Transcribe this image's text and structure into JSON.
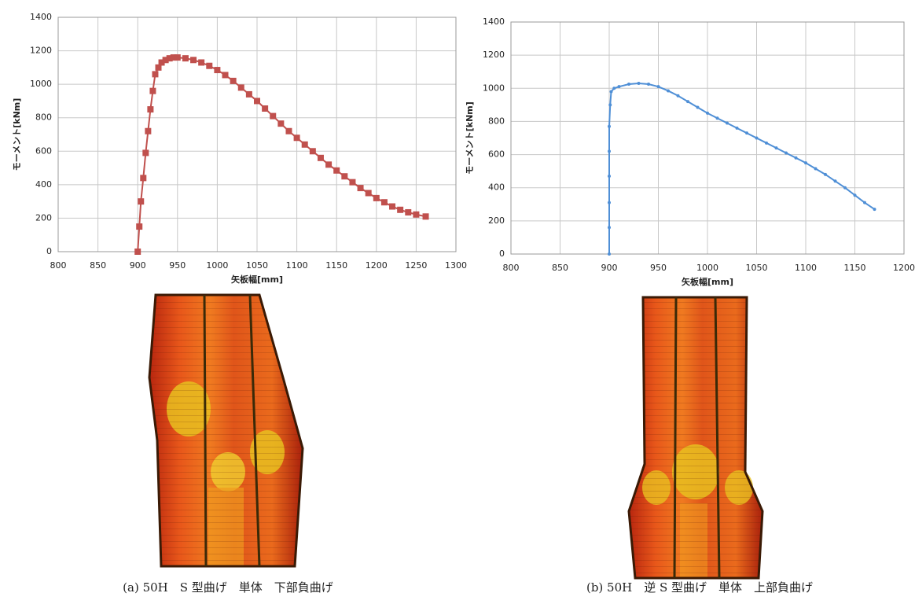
{
  "chart_data": [
    {
      "type": "line",
      "x_label": "矢板幅[mm]",
      "y_label": "モーメント[kNm]",
      "x": [
        900,
        902,
        904,
        907,
        910,
        913,
        916,
        919,
        922,
        926,
        930,
        935,
        940,
        945,
        950,
        960,
        970,
        980,
        990,
        1000,
        1010,
        1020,
        1030,
        1040,
        1050,
        1060,
        1070,
        1080,
        1090,
        1100,
        1110,
        1120,
        1130,
        1140,
        1150,
        1160,
        1170,
        1180,
        1190,
        1200,
        1210,
        1220,
        1230,
        1240,
        1250,
        1262
      ],
      "series": [
        {
          "color": "#c0504d",
          "marker": "square",
          "values": [
            0,
            150,
            300,
            440,
            590,
            720,
            850,
            960,
            1060,
            1100,
            1130,
            1145,
            1155,
            1160,
            1160,
            1155,
            1145,
            1130,
            1110,
            1085,
            1055,
            1020,
            980,
            940,
            900,
            855,
            810,
            765,
            720,
            680,
            640,
            600,
            560,
            520,
            485,
            450,
            415,
            380,
            350,
            320,
            295,
            270,
            250,
            235,
            222,
            210
          ]
        }
      ],
      "xlim": [
        800,
        1300
      ],
      "xticks": [
        800,
        850,
        900,
        950,
        1000,
        1050,
        1100,
        1150,
        1200,
        1250,
        1300
      ],
      "ylim": [
        0,
        1400
      ],
      "yticks": [
        0,
        200,
        400,
        600,
        800,
        1000,
        1200,
        1400
      ],
      "grid": true,
      "caption": "(a) 50H　S 型曲げ　単体　下部負曲げ"
    },
    {
      "type": "line",
      "x_label": "矢板幅[mm]",
      "y_label": "モーメント[kNm]",
      "x": [
        900,
        900,
        900,
        900,
        900,
        900,
        901,
        902,
        905,
        910,
        920,
        930,
        940,
        950,
        960,
        970,
        980,
        990,
        1000,
        1010,
        1020,
        1030,
        1040,
        1050,
        1060,
        1070,
        1080,
        1090,
        1100,
        1110,
        1120,
        1130,
        1140,
        1150,
        1160,
        1170
      ],
      "series": [
        {
          "color": "#4f8fd6",
          "marker": "circle",
          "values": [
            0,
            160,
            310,
            470,
            620,
            770,
            900,
            980,
            1000,
            1010,
            1025,
            1030,
            1025,
            1010,
            985,
            955,
            920,
            885,
            850,
            820,
            790,
            760,
            730,
            700,
            670,
            640,
            610,
            580,
            550,
            515,
            480,
            440,
            400,
            355,
            310,
            270
          ]
        }
      ],
      "xlim": [
        800,
        1200
      ],
      "xticks": [
        800,
        850,
        900,
        950,
        1000,
        1050,
        1100,
        1150,
        1200
      ],
      "ylim": [
        0,
        1400
      ],
      "yticks": [
        0,
        200,
        400,
        600,
        800,
        1000,
        1200,
        1400
      ],
      "grid": true,
      "caption": "(b) 50H　逆 S 型曲げ　単体　上部負曲げ"
    }
  ]
}
